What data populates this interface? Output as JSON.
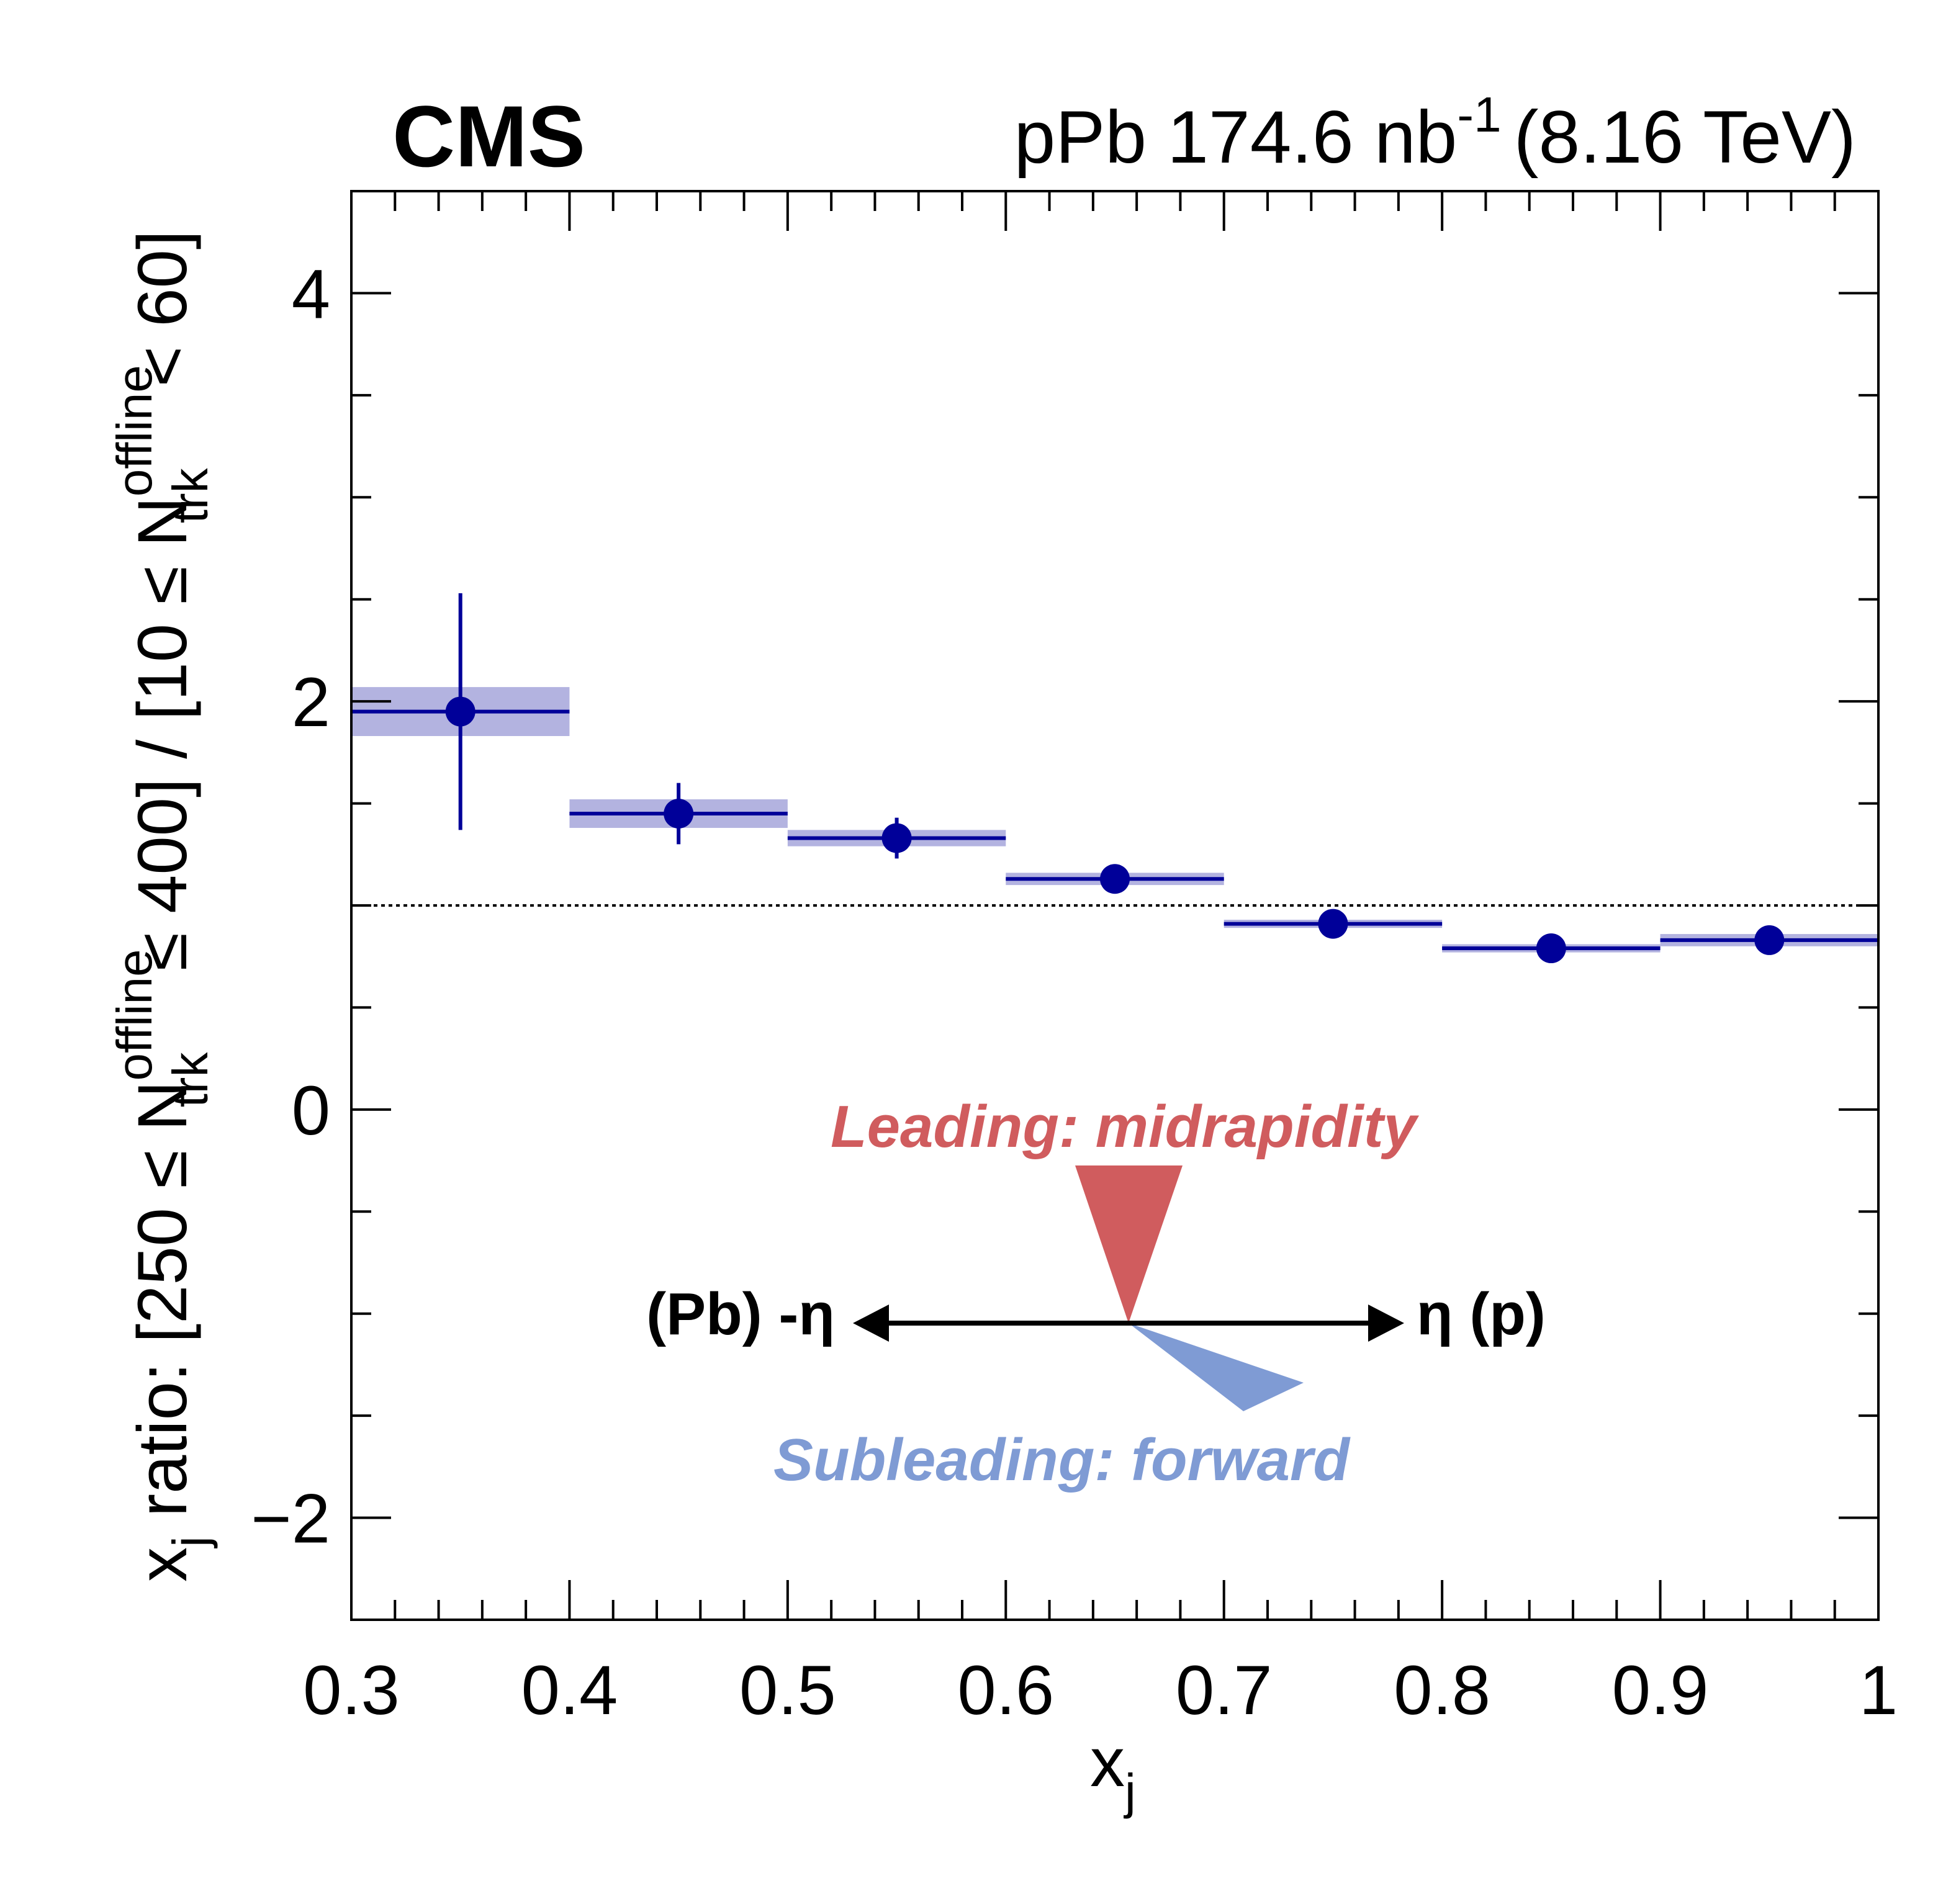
{
  "header": {
    "experiment": "CMS",
    "lumi_prefix": "pPb 174.6 nb",
    "lumi_exp": "-1",
    "energy": "(8.16 TeV)"
  },
  "axes": {
    "xlabel_main": "x",
    "xlabel_sub": "j",
    "ylabel_parts": {
      "p1": "x",
      "p1_sub": "j",
      "p2": " ratio: [250 ≤ N",
      "p2_sup": "offline",
      "p2_sub": "trk",
      "p3": " ≤ 400] / [10 ≤ N",
      "p3_sup": "offline",
      "p3_sub": "trk",
      "p4": " < 60]"
    }
  },
  "inset": {
    "leading_label": "Leading: midrapidity",
    "subleading_label": "Subleading: forward",
    "left_label": "(Pb) -η",
    "right_label": "η (p)",
    "leading_color": "#d05c5e",
    "subleading_color": "#7f9bd4"
  },
  "colors": {
    "marker": "#000099",
    "band": "#b3b3e0",
    "axis": "#000000"
  },
  "chart_data": {
    "type": "scatter",
    "xlabel": "xj",
    "ylabel": "xj ratio: [250 ≤ N_trk^offline ≤ 400] / [10 ≤ N_trk^offline < 60]",
    "xlim": [
      0.3,
      1.0
    ],
    "ylim": [
      -2.5,
      4.5
    ],
    "xticks": [
      0.3,
      0.4,
      0.5,
      0.6,
      0.7,
      0.8,
      0.9,
      1.0
    ],
    "xtick_labels": [
      "0.3",
      "0.4",
      "0.5",
      "0.6",
      "0.7",
      "0.8",
      "0.9",
      "1"
    ],
    "yticks": [
      -2,
      0,
      2,
      4
    ],
    "ytick_labels": [
      "−2",
      "0",
      "2",
      "4"
    ],
    "reference_line": 1.0,
    "grid": false,
    "points": [
      {
        "x": 0.35,
        "xlow": 0.3,
        "xhigh": 0.4,
        "y": 1.95,
        "stat_err": 0.58,
        "syst_err": 0.12
      },
      {
        "x": 0.45,
        "xlow": 0.4,
        "xhigh": 0.5,
        "y": 1.45,
        "stat_err": 0.15,
        "syst_err": 0.07
      },
      {
        "x": 0.55,
        "xlow": 0.5,
        "xhigh": 0.6,
        "y": 1.33,
        "stat_err": 0.1,
        "syst_err": 0.04
      },
      {
        "x": 0.65,
        "xlow": 0.6,
        "xhigh": 0.7,
        "y": 1.13,
        "stat_err": 0.04,
        "syst_err": 0.03
      },
      {
        "x": 0.75,
        "xlow": 0.7,
        "xhigh": 0.8,
        "y": 0.91,
        "stat_err": 0.03,
        "syst_err": 0.02
      },
      {
        "x": 0.85,
        "xlow": 0.8,
        "xhigh": 0.9,
        "y": 0.79,
        "stat_err": 0.03,
        "syst_err": 0.02
      },
      {
        "x": 0.95,
        "xlow": 0.9,
        "xhigh": 1.0,
        "y": 0.83,
        "stat_err": 0.03,
        "syst_err": 0.03
      }
    ]
  }
}
